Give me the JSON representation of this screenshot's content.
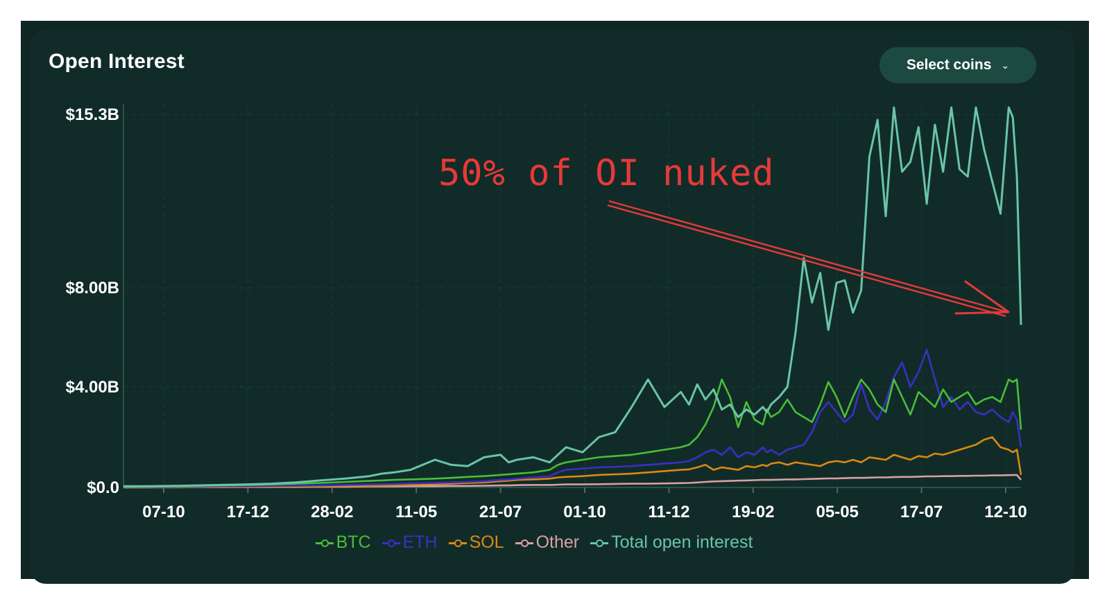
{
  "title": "Open Interest",
  "select_coins": {
    "label": "Select coins",
    "icon": "chevron-down-icon"
  },
  "annotation": "50% of OI nuked",
  "colors": {
    "background": "#112c28",
    "btc": "#4bbd3a",
    "eth": "#3a2fc4",
    "sol": "#d98a12",
    "other": "#d9a0a4",
    "total": "#6bc4a8",
    "annotation": "#e8393a"
  },
  "chart_data": {
    "type": "line",
    "title": "Open Interest",
    "xlabel": "",
    "ylabel": "",
    "x_ticks": [
      "07-10",
      "17-12",
      "28-02",
      "11-05",
      "21-07",
      "01-10",
      "11-12",
      "19-02",
      "05-05",
      "17-07",
      "12-10"
    ],
    "y_ticks": [
      {
        "value": 15.3,
        "label": "$15.3B"
      },
      {
        "value": 8.0,
        "label": "$8.00B"
      },
      {
        "value": 4.0,
        "label": "$4.00B"
      },
      {
        "value": 0.0,
        "label": "$0.0"
      }
    ],
    "ylim": [
      0,
      15.3
    ],
    "grid": true,
    "legend_position": "bottom",
    "x_index": [
      0,
      6,
      12,
      18,
      24,
      30,
      36,
      42,
      48,
      54,
      60,
      63,
      66,
      70,
      76,
      80,
      84,
      88,
      92,
      94,
      96,
      100,
      104,
      106,
      108,
      112,
      116,
      120,
      124,
      128,
      132,
      136,
      138,
      140,
      142,
      144,
      146,
      148,
      150,
      152,
      154,
      156,
      157,
      158,
      160,
      162,
      164,
      166,
      168,
      170,
      172,
      174,
      176,
      178,
      180,
      182,
      184,
      186,
      188,
      190,
      192,
      194,
      196,
      198,
      200,
      202,
      204,
      206,
      208,
      210,
      212,
      214,
      216,
      217,
      218,
      219
    ],
    "series": [
      {
        "name": "BTC",
        "values": [
          0.02,
          0.03,
          0.04,
          0.06,
          0.08,
          0.1,
          0.12,
          0.15,
          0.18,
          0.22,
          0.26,
          0.28,
          0.3,
          0.32,
          0.35,
          0.38,
          0.42,
          0.45,
          0.5,
          0.52,
          0.55,
          0.6,
          0.7,
          0.9,
          1.0,
          1.1,
          1.2,
          1.25,
          1.3,
          1.4,
          1.5,
          1.6,
          1.7,
          2.0,
          2.5,
          3.2,
          4.3,
          3.6,
          2.4,
          3.4,
          2.7,
          2.5,
          3.1,
          2.8,
          3.0,
          3.5,
          3.0,
          2.8,
          2.6,
          3.3,
          4.2,
          3.6,
          2.8,
          3.6,
          4.3,
          3.9,
          3.3,
          3.0,
          4.3,
          3.6,
          2.9,
          3.8,
          3.5,
          3.2,
          3.9,
          3.4,
          3.6,
          3.8,
          3.3,
          3.5,
          3.6,
          3.4,
          4.3,
          4.2,
          4.3,
          2.3
        ]
      },
      {
        "name": "ETH",
        "values": [
          0.01,
          0.01,
          0.02,
          0.03,
          0.04,
          0.05,
          0.06,
          0.07,
          0.08,
          0.1,
          0.12,
          0.13,
          0.14,
          0.16,
          0.18,
          0.2,
          0.22,
          0.25,
          0.3,
          0.32,
          0.35,
          0.4,
          0.45,
          0.6,
          0.7,
          0.75,
          0.8,
          0.82,
          0.85,
          0.9,
          0.95,
          1.0,
          1.05,
          1.2,
          1.4,
          1.5,
          1.3,
          1.6,
          1.2,
          1.4,
          1.3,
          1.6,
          1.4,
          1.5,
          1.3,
          1.5,
          1.6,
          1.7,
          2.2,
          3.0,
          3.4,
          3.0,
          2.6,
          2.9,
          4.1,
          3.1,
          2.7,
          3.4,
          4.4,
          5.0,
          4.0,
          4.6,
          5.5,
          4.3,
          3.2,
          3.6,
          3.1,
          3.4,
          3.0,
          2.9,
          3.1,
          2.8,
          2.6,
          3.0,
          2.7,
          1.6
        ]
      },
      {
        "name": "SOL",
        "values": [
          0.0,
          0.0,
          0.0,
          0.01,
          0.01,
          0.02,
          0.02,
          0.03,
          0.04,
          0.05,
          0.06,
          0.07,
          0.08,
          0.1,
          0.12,
          0.15,
          0.18,
          0.2,
          0.25,
          0.27,
          0.3,
          0.32,
          0.35,
          0.4,
          0.42,
          0.45,
          0.5,
          0.52,
          0.55,
          0.6,
          0.65,
          0.7,
          0.72,
          0.8,
          0.9,
          0.7,
          0.8,
          0.75,
          0.7,
          0.85,
          0.8,
          0.9,
          0.85,
          0.95,
          1.0,
          0.9,
          1.0,
          0.95,
          0.9,
          0.85,
          1.0,
          1.05,
          1.0,
          1.1,
          1.0,
          1.2,
          1.15,
          1.1,
          1.3,
          1.2,
          1.1,
          1.25,
          1.2,
          1.35,
          1.3,
          1.4,
          1.5,
          1.6,
          1.7,
          1.9,
          2.0,
          1.6,
          1.5,
          1.4,
          1.5,
          0.5
        ]
      },
      {
        "name": "Other",
        "values": [
          0.0,
          0.0,
          0.01,
          0.01,
          0.01,
          0.02,
          0.02,
          0.02,
          0.03,
          0.03,
          0.04,
          0.04,
          0.04,
          0.05,
          0.05,
          0.06,
          0.06,
          0.07,
          0.08,
          0.08,
          0.09,
          0.1,
          0.1,
          0.11,
          0.12,
          0.12,
          0.13,
          0.14,
          0.15,
          0.15,
          0.16,
          0.17,
          0.18,
          0.2,
          0.22,
          0.24,
          0.25,
          0.26,
          0.27,
          0.28,
          0.29,
          0.3,
          0.3,
          0.3,
          0.31,
          0.32,
          0.32,
          0.33,
          0.34,
          0.35,
          0.36,
          0.36,
          0.37,
          0.38,
          0.38,
          0.39,
          0.4,
          0.4,
          0.41,
          0.42,
          0.42,
          0.43,
          0.44,
          0.44,
          0.45,
          0.45,
          0.46,
          0.46,
          0.47,
          0.47,
          0.48,
          0.48,
          0.49,
          0.49,
          0.5,
          0.3
        ]
      },
      {
        "name": "Total open interest",
        "values": [
          0.05,
          0.05,
          0.06,
          0.08,
          0.1,
          0.12,
          0.15,
          0.2,
          0.28,
          0.35,
          0.45,
          0.55,
          0.6,
          0.7,
          1.1,
          0.9,
          0.85,
          1.2,
          1.3,
          1.0,
          1.1,
          1.2,
          1.0,
          1.3,
          1.6,
          1.4,
          2.0,
          2.2,
          3.2,
          4.3,
          3.2,
          3.8,
          3.3,
          4.1,
          3.5,
          3.9,
          3.1,
          3.3,
          2.8,
          3.1,
          2.9,
          3.2,
          3.0,
          3.3,
          3.6,
          4.0,
          6.2,
          9.2,
          7.4,
          8.6,
          6.3,
          8.2,
          8.3,
          7.0,
          7.9,
          13.3,
          14.8,
          10.9,
          15.3,
          12.7,
          13.1,
          14.5,
          11.4,
          14.6,
          12.7,
          15.3,
          12.8,
          12.5,
          15.3,
          13.6,
          12.3,
          11.0,
          15.3,
          14.9,
          12.5,
          6.5
        ]
      }
    ]
  },
  "legend": [
    {
      "label": "BTC",
      "key": "btc"
    },
    {
      "label": "ETH",
      "key": "eth"
    },
    {
      "label": "SOL",
      "key": "sol"
    },
    {
      "label": "Other",
      "key": "other"
    },
    {
      "label": "Total open interest",
      "key": "total"
    }
  ]
}
